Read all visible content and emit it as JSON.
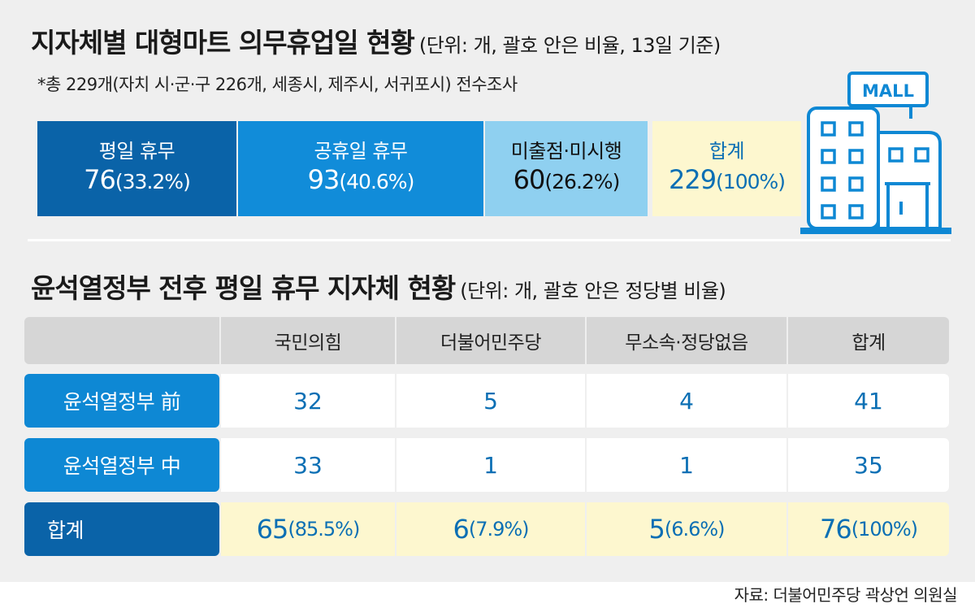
{
  "title": "지자체별 대형마트 의무휴업일 현황",
  "title_unit": "(단위: 개, 괄호 안은 비율, 13일 기준)",
  "note": "*총 229개(자치 시·군·구 226개, 세종시, 제주시, 서귀포시) 전수조사",
  "summary": [
    {
      "label": "평일 휴무",
      "value": "76",
      "pct": "(33.2%)"
    },
    {
      "label": "공휴일 휴무",
      "value": "93",
      "pct": "(40.6%)"
    },
    {
      "label": "미출점·미시행",
      "value": "60",
      "pct": "(26.2%)"
    },
    {
      "label": "합계",
      "value": "229",
      "pct": "(100%)"
    }
  ],
  "mall_sign": "MALL",
  "table_title": "윤석열정부 전후 평일 휴무 지자체 현황",
  "table_unit": "(단위: 개, 괄호 안은 정당별 비율)",
  "columns": [
    "국민의힘",
    "더불어민주당",
    "무소속·정당없음",
    "합계"
  ],
  "rows": [
    {
      "label": "윤석열정부 前",
      "cells": [
        "32",
        "5",
        "4",
        "41"
      ]
    },
    {
      "label": "윤석열정부 中",
      "cells": [
        "33",
        "1",
        "1",
        "35"
      ]
    }
  ],
  "total_row": {
    "label": "합계",
    "cells": [
      {
        "value": "65",
        "pct": "(85.5%)"
      },
      {
        "value": "6",
        "pct": "(7.9%)"
      },
      {
        "value": "5",
        "pct": "(6.6%)"
      },
      {
        "value": "76",
        "pct": "(100%)"
      }
    ]
  },
  "source": "자료: 더불어민주당 곽상언 의원실",
  "colors": {
    "dark_blue": "#0a63a8",
    "blue": "#118cd9",
    "light_blue": "#8fd0f0",
    "cream": "#fdf7cf"
  },
  "chart_data": {
    "type": "table",
    "title": "지자체별 대형마트 의무휴업일 현황",
    "summary_categories": [
      "평일 휴무",
      "공휴일 휴무",
      "미출점·미시행",
      "합계"
    ],
    "summary_values": [
      76,
      93,
      60,
      229
    ],
    "summary_percent": [
      33.2,
      40.6,
      26.2,
      100
    ],
    "table_title": "윤석열정부 전후 평일 휴무 지자체 현황",
    "table_columns": [
      "국민의힘",
      "더불어민주당",
      "무소속·정당없음",
      "합계"
    ],
    "table_rows": [
      "윤석열정부 前",
      "윤석열정부 中",
      "합계"
    ],
    "table_values": [
      [
        32,
        5,
        4,
        41
      ],
      [
        33,
        1,
        1,
        35
      ],
      [
        65,
        6,
        5,
        76
      ]
    ],
    "total_percent": [
      85.5,
      7.9,
      6.6,
      100
    ]
  }
}
